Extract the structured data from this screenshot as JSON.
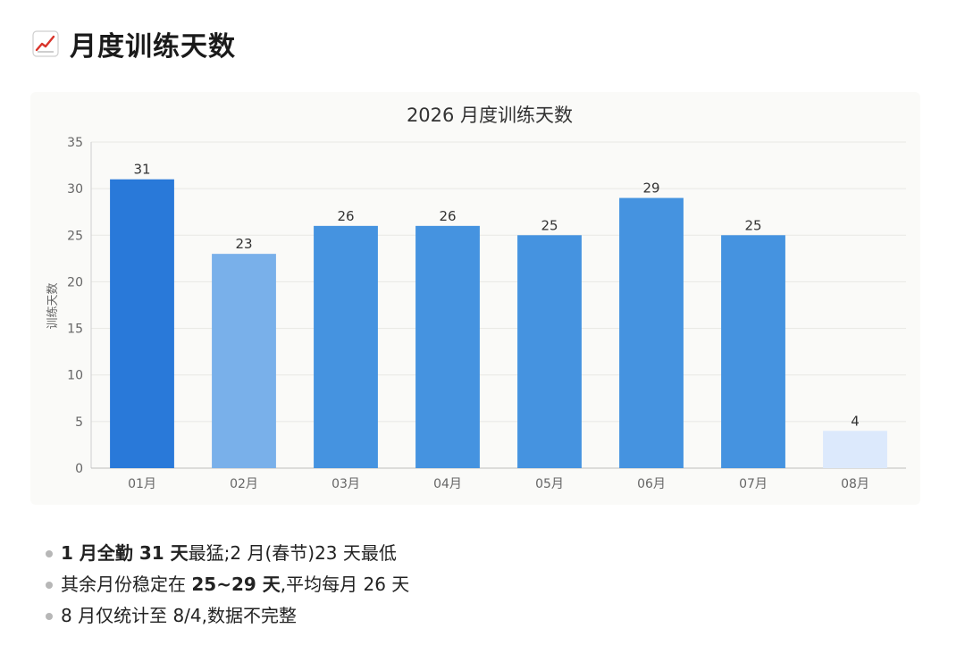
{
  "header": {
    "icon": "chart-increasing-icon",
    "title": "月度训练天数"
  },
  "colors": {
    "bar_max": "#2979d9",
    "bar_min": "#79b0ea",
    "bar_normal": "#4593e0",
    "bar_partial": "#dce9fc",
    "gridline": "#e8e8e4",
    "axis_text": "#666666",
    "card_background": "#fafaf8"
  },
  "chart_data": {
    "type": "bar",
    "title": "2026 月度训练天数",
    "xlabel": "",
    "ylabel": "训练天数",
    "categories": [
      "01月",
      "02月",
      "03月",
      "04月",
      "05月",
      "06月",
      "07月",
      "08月"
    ],
    "values": [
      31,
      23,
      26,
      26,
      25,
      29,
      25,
      4
    ],
    "bar_style": [
      "max",
      "min",
      "normal",
      "normal",
      "normal",
      "normal",
      "normal",
      "partial"
    ],
    "ylim": [
      0,
      35
    ],
    "yticks": [
      0,
      5,
      10,
      15,
      20,
      25,
      30,
      35
    ],
    "grid": true,
    "data_labels": true,
    "legend": "none"
  },
  "notes": [
    [
      {
        "text": "1 月全勤 31 天",
        "bold": true
      },
      {
        "text": "最猛;2 月(春节)23 天最低",
        "bold": false
      }
    ],
    [
      {
        "text": "其余月份稳定在 ",
        "bold": false
      },
      {
        "text": "25~29 天",
        "bold": true
      },
      {
        "text": ",平均每月 26 天",
        "bold": false
      }
    ],
    [
      {
        "text": "8 月仅统计至 8/4,数据不完整",
        "bold": false
      }
    ]
  ]
}
